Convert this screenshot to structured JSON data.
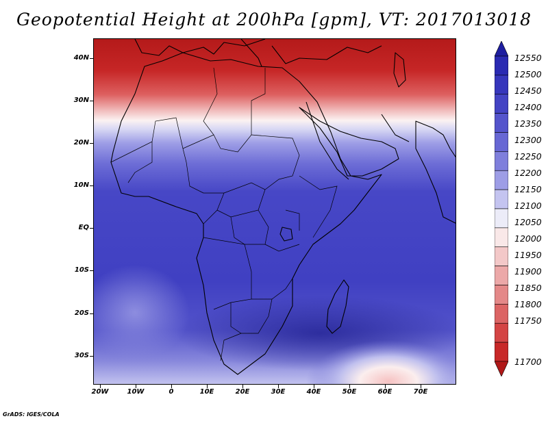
{
  "title": "Geopotential Height at 200hPa [gpm], VT: 2017013018",
  "credit": "GrADS: IGES/COLA",
  "map": {
    "region": "Africa",
    "lat_range": [
      -37,
      45
    ],
    "lon_range": [
      -22,
      80
    ],
    "lat_labels": [
      {
        "lat": 40,
        "text": "40N"
      },
      {
        "lat": 30,
        "text": "30N"
      },
      {
        "lat": 20,
        "text": "20N"
      },
      {
        "lat": 10,
        "text": "10N"
      },
      {
        "lat": 0,
        "text": "EQ"
      },
      {
        "lat": -10,
        "text": "10S"
      },
      {
        "lat": -20,
        "text": "20S"
      },
      {
        "lat": -30,
        "text": "30S"
      }
    ],
    "lon_labels": [
      {
        "lon": -20,
        "text": "20W"
      },
      {
        "lon": -10,
        "text": "10W"
      },
      {
        "lon": 0,
        "text": "0"
      },
      {
        "lon": 10,
        "text": "10E"
      },
      {
        "lon": 20,
        "text": "20E"
      },
      {
        "lon": 30,
        "text": "30E"
      },
      {
        "lon": 40,
        "text": "40E"
      },
      {
        "lon": 50,
        "text": "50E"
      },
      {
        "lon": 60,
        "text": "60E"
      },
      {
        "lon": 70,
        "text": "70E"
      }
    ],
    "colorbar_levels": [
      12550,
      12500,
      12450,
      12400,
      12350,
      12300,
      12250,
      12200,
      12150,
      12100,
      12050,
      12000,
      11950,
      11900,
      11850,
      11800,
      11750,
      11700
    ],
    "colorbar_labels": [
      "12550",
      "12500",
      "12450",
      "12400",
      "12350",
      "12300",
      "12250",
      "12200",
      "12150",
      "12100",
      "12050",
      "12000",
      "11950",
      "11900",
      "11850",
      "11800",
      "11750",
      "11700"
    ],
    "colorbar_colors": [
      "#1e1ea0",
      "#2a2ab2",
      "#3636bc",
      "#4343c4",
      "#5454cc",
      "#6767d4",
      "#7f7fdc",
      "#9d9de6",
      "#c4c4f0",
      "#ececf8",
      "#f9e8e8",
      "#f3c8c8",
      "#eca8a8",
      "#e48888",
      "#dc6464",
      "#d44444",
      "#c82828",
      "#b01818"
    ]
  }
}
